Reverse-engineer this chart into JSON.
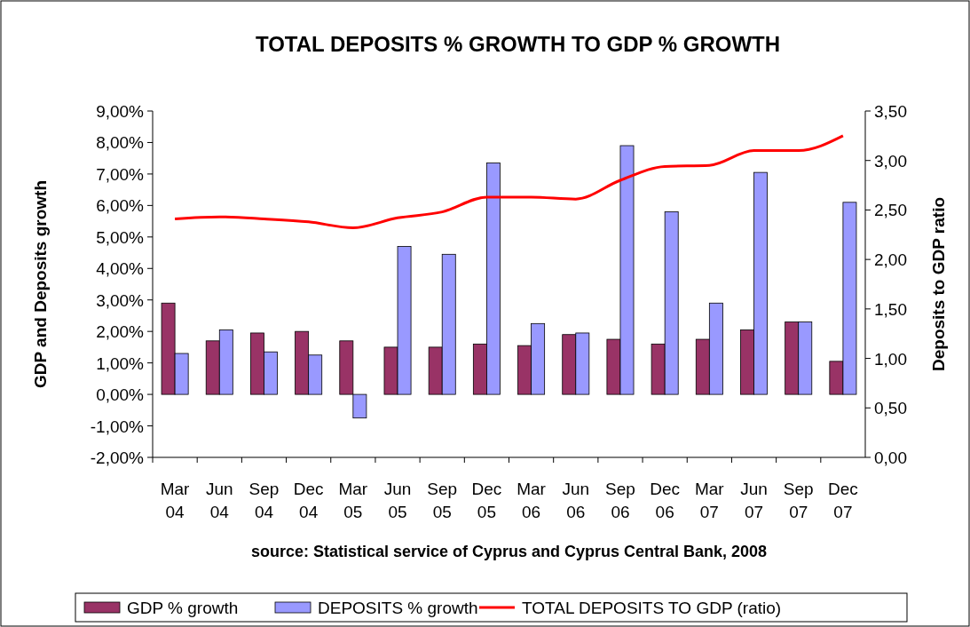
{
  "chart_data": {
    "type": "bar",
    "title": "TOTAL DEPOSITS % GROWTH TO GDP % GROWTH",
    "ylabel": "GDP and Deposits growth",
    "y2label": "Deposits to GDP ratio",
    "annotations": [
      "source: Statistical service of Cyprus and Cyprus Central Bank, 2008"
    ],
    "categories": [
      "Mar 04",
      "Jun 04",
      "Sep 04",
      "Dec 04",
      "Mar 05",
      "Jun 05",
      "Sep 05",
      "Dec 05",
      "Mar 06",
      "Jun 06",
      "Sep 06",
      "Dec 06",
      "Mar 07",
      "Jun 07",
      "Sep 07",
      "Dec 07"
    ],
    "series": [
      {
        "name": "GDP % growth",
        "color": "#993366",
        "values": [
          2.9,
          1.7,
          1.95,
          2.0,
          1.7,
          1.5,
          1.5,
          1.6,
          1.55,
          1.9,
          1.75,
          1.6,
          1.75,
          2.05,
          2.3,
          1.05
        ]
      },
      {
        "name": "DEPOSITS % growth",
        "color": "#9999ff",
        "values": [
          1.3,
          2.05,
          1.35,
          1.25,
          -0.75,
          4.7,
          4.45,
          7.35,
          2.25,
          1.95,
          7.9,
          5.8,
          2.9,
          7.05,
          2.3,
          6.1
        ]
      },
      {
        "name": "TOTAL DEPOSITS TO GDP (ratio)",
        "color": "#ff0000",
        "type": "line",
        "axis": "y2",
        "values": [
          2.41,
          2.43,
          2.41,
          2.38,
          2.32,
          2.42,
          2.48,
          2.63,
          2.63,
          2.61,
          2.8,
          2.94,
          2.95,
          3.1,
          3.1,
          3.25
        ]
      }
    ],
    "ylim": [
      -2,
      9
    ],
    "yticks": [
      {
        "value": -2,
        "label": "-2,00%"
      },
      {
        "value": -1,
        "label": "-1,00%"
      },
      {
        "value": 0,
        "label": "0,00%"
      },
      {
        "value": 1,
        "label": "1,00%"
      },
      {
        "value": 2,
        "label": "2,00%"
      },
      {
        "value": 3,
        "label": "3,00%"
      },
      {
        "value": 4,
        "label": "4,00%"
      },
      {
        "value": 5,
        "label": "5,00%"
      },
      {
        "value": 6,
        "label": "6,00%"
      },
      {
        "value": 7,
        "label": "7,00%"
      },
      {
        "value": 8,
        "label": "8,00%"
      },
      {
        "value": 9,
        "label": "9,00%"
      }
    ],
    "y2lim": [
      0,
      3.5
    ],
    "y2ticks": [
      {
        "value": 0,
        "label": "0,00"
      },
      {
        "value": 0.5,
        "label": "0,50"
      },
      {
        "value": 1,
        "label": "1,00"
      },
      {
        "value": 1.5,
        "label": "1,50"
      },
      {
        "value": 2,
        "label": "2,00"
      },
      {
        "value": 2.5,
        "label": "2,50"
      },
      {
        "value": 3,
        "label": "3,00"
      },
      {
        "value": 3.5,
        "label": "3,50"
      }
    ],
    "legend": "bottom",
    "grid": false
  }
}
